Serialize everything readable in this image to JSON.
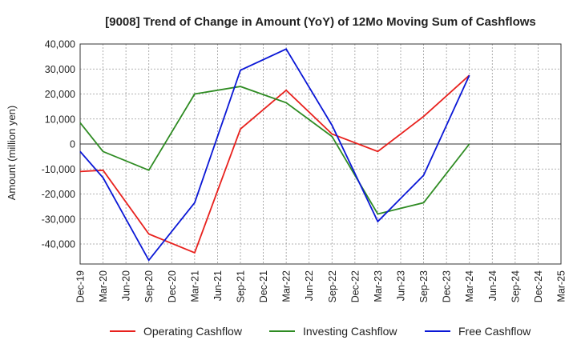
{
  "chart_data": {
    "type": "line",
    "title": "[9008]  Trend of Change in Amount (YoY) of 12Mo Moving Sum of Cashflows",
    "xlabel": "",
    "ylabel": "Amount (million yen)",
    "ylim": [
      -48000,
      40000
    ],
    "yticks": [
      40000,
      30000,
      20000,
      10000,
      0,
      -10000,
      -20000,
      -30000,
      -40000
    ],
    "ytick_labels": [
      "40,000",
      "30,000",
      "20,000",
      "10,000",
      "0",
      "-10,000",
      "-20,000",
      "-30,000",
      "-40,000"
    ],
    "categories": [
      "Dec-19",
      "Mar-20",
      "Jun-20",
      "Sep-20",
      "Dec-20",
      "Mar-21",
      "Jun-21",
      "Sep-21",
      "Dec-21",
      "Mar-22",
      "Jun-22",
      "Sep-22",
      "Dec-22",
      "Mar-23",
      "Jun-23",
      "Sep-23",
      "Dec-23",
      "Mar-24",
      "Jun-24",
      "Sep-24",
      "Dec-24",
      "Mar-25"
    ],
    "grid": true,
    "legend_position": "bottom",
    "series": [
      {
        "name": "Operating Cashflow",
        "color": "#e8211d",
        "values": [
          -11000,
          -10500,
          null,
          -36000,
          null,
          -43500,
          null,
          6000,
          null,
          21500,
          null,
          4000,
          null,
          -3000,
          null,
          11000,
          null,
          27500,
          null,
          null,
          null,
          null
        ]
      },
      {
        "name": "Investing Cashflow",
        "color": "#2e8b22",
        "values": [
          8500,
          -3000,
          null,
          -10500,
          null,
          20000,
          null,
          23000,
          null,
          16500,
          null,
          3000,
          null,
          -28000,
          null,
          -23500,
          null,
          0,
          null,
          null,
          null,
          null
        ]
      },
      {
        "name": "Free Cashflow",
        "color": "#0a17d6",
        "values": [
          -3000,
          -13500,
          null,
          -46500,
          null,
          -23500,
          null,
          29500,
          null,
          38000,
          null,
          7500,
          null,
          -31000,
          null,
          -12500,
          null,
          27500,
          null,
          null,
          null,
          null
        ]
      }
    ]
  }
}
